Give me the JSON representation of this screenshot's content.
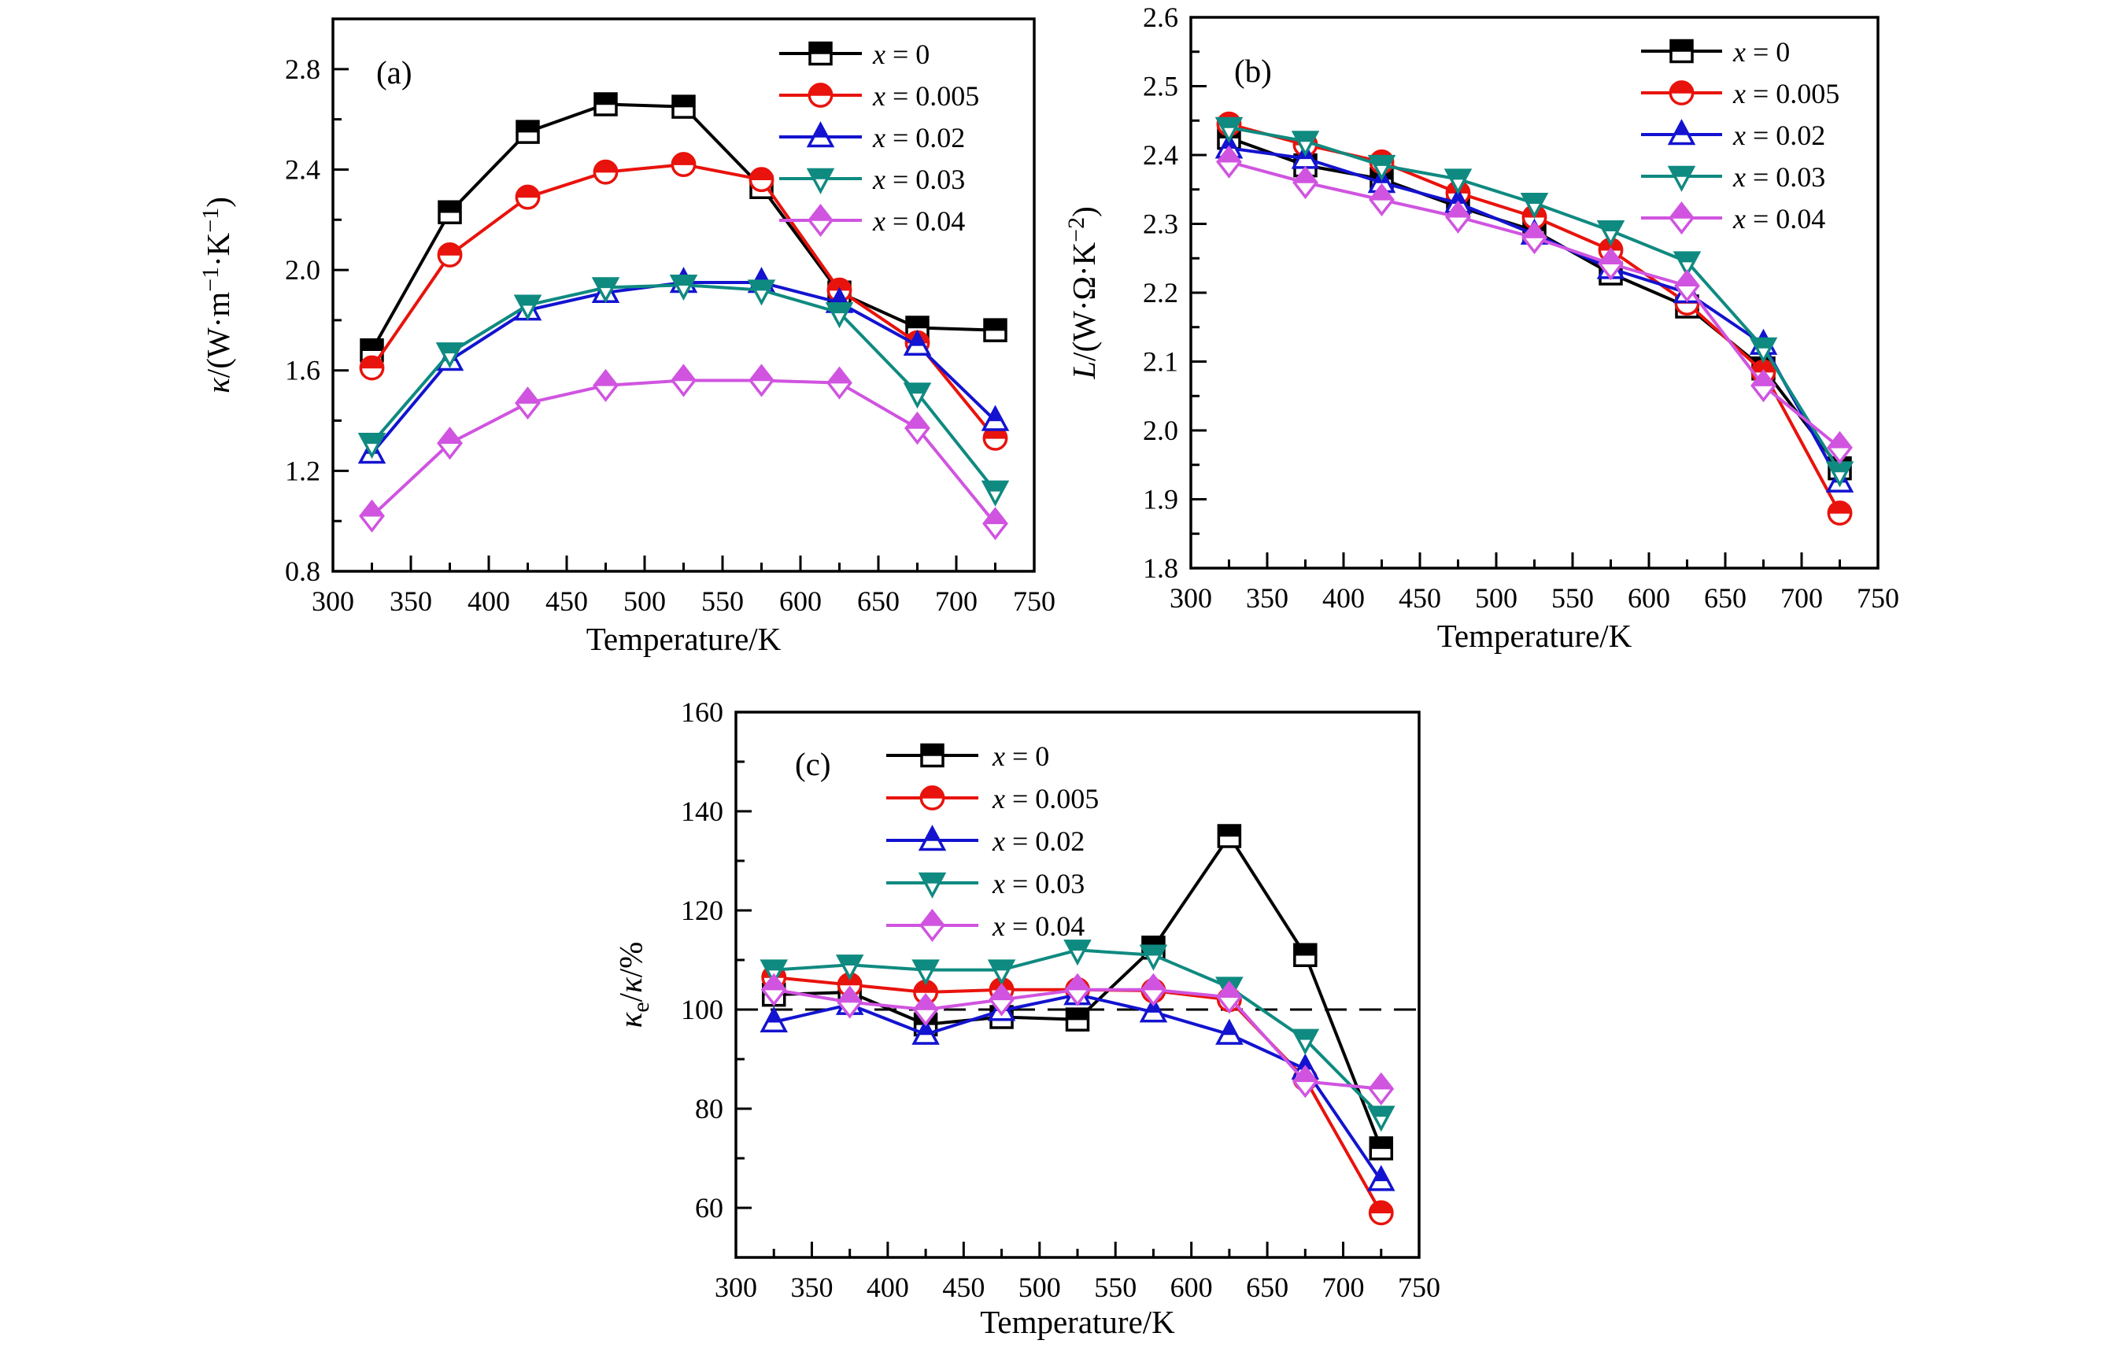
{
  "figure": {
    "background": "#ffffff",
    "x_points": [
      325,
      375,
      425,
      475,
      525,
      575,
      625,
      675,
      725
    ]
  },
  "chart_data": [
    {
      "id": "a",
      "type": "line",
      "panel_label": "(a)",
      "xlabel": "Temperature/K",
      "ylabel": "κ/(W·m⁻¹·K⁻¹)",
      "ylabel_parts": [
        {
          "t": "κ",
          "i": 1
        },
        {
          "t": "/(W·m"
        },
        {
          "t": "−1",
          "sup": 1
        },
        {
          "t": "·K"
        },
        {
          "t": "−1",
          "sup": 1
        },
        {
          "t": ")"
        }
      ],
      "xlim": [
        300,
        750
      ],
      "ylim": [
        0.8,
        3.0
      ],
      "xticks": [
        "300",
        "350",
        "400",
        "450",
        "500",
        "550",
        "600",
        "650",
        "700",
        "750"
      ],
      "yticks": [
        "0.8",
        "1.2",
        "1.6",
        "2.0",
        "2.4",
        "2.8"
      ],
      "x_minor_step": 25,
      "y_minor_step": 0.2,
      "grid": false,
      "legend_position": "top-right",
      "x": [
        325,
        375,
        425,
        475,
        525,
        575,
        625,
        675,
        725
      ],
      "series": [
        {
          "name": "x = 0",
          "marker": "square",
          "color": "#000000",
          "values": [
            1.68,
            2.23,
            2.55,
            2.66,
            2.65,
            2.33,
            1.91,
            1.77,
            1.76
          ]
        },
        {
          "name": "x = 0.005",
          "marker": "circle",
          "color": "#e8130c",
          "values": [
            1.61,
            2.06,
            2.29,
            2.39,
            2.42,
            2.36,
            1.92,
            1.71,
            1.33
          ]
        },
        {
          "name": "x = 0.02",
          "marker": "triangle-up",
          "color": "#1313d0",
          "values": [
            1.27,
            1.64,
            1.84,
            1.91,
            1.95,
            1.95,
            1.87,
            1.7,
            1.4
          ]
        },
        {
          "name": "x = 0.03",
          "marker": "triangle-down",
          "color": "#0f8a80",
          "values": [
            1.31,
            1.67,
            1.86,
            1.93,
            1.94,
            1.92,
            1.83,
            1.51,
            1.12
          ]
        },
        {
          "name": "x = 0.04",
          "marker": "diamond",
          "color": "#d054e0",
          "values": [
            1.02,
            1.31,
            1.47,
            1.54,
            1.56,
            1.56,
            1.55,
            1.37,
            0.99
          ]
        }
      ]
    },
    {
      "id": "b",
      "type": "line",
      "panel_label": "(b)",
      "xlabel": "Temperature/K",
      "ylabel": "L/(W·Ω·K⁻²)",
      "ylabel_parts": [
        {
          "t": "L",
          "i": 1
        },
        {
          "t": "/(W·Ω·K"
        },
        {
          "t": "−2",
          "sup": 1
        },
        {
          "t": ")"
        }
      ],
      "xlim": [
        300,
        750
      ],
      "ylim": [
        1.8,
        2.6
      ],
      "xticks": [
        "300",
        "350",
        "400",
        "450",
        "500",
        "550",
        "600",
        "650",
        "700",
        "750"
      ],
      "yticks": [
        "1.8",
        "1.9",
        "2.0",
        "2.1",
        "2.2",
        "2.3",
        "2.4",
        "2.5",
        "2.6"
      ],
      "x_minor_step": 25,
      "y_minor_step": 0.05,
      "grid": false,
      "legend_position": "top-right",
      "x": [
        325,
        375,
        425,
        475,
        525,
        575,
        625,
        675,
        725
      ],
      "series": [
        {
          "name": "x = 0",
          "marker": "square",
          "color": "#000000",
          "values": [
            2.425,
            2.385,
            2.365,
            2.325,
            2.29,
            2.228,
            2.18,
            2.09,
            1.945
          ]
        },
        {
          "name": "x = 0.005",
          "marker": "circle",
          "color": "#e8130c",
          "values": [
            2.445,
            2.415,
            2.39,
            2.345,
            2.31,
            2.262,
            2.185,
            2.085,
            1.88
          ]
        },
        {
          "name": "x = 0.02",
          "marker": "triangle-up",
          "color": "#1313d0",
          "values": [
            2.41,
            2.395,
            2.36,
            2.33,
            2.285,
            2.235,
            2.2,
            2.125,
            1.925
          ]
        },
        {
          "name": "x = 0.03",
          "marker": "triangle-down",
          "color": "#0f8a80",
          "values": [
            2.44,
            2.42,
            2.385,
            2.365,
            2.33,
            2.29,
            2.245,
            2.12,
            1.94
          ]
        },
        {
          "name": "x = 0.04",
          "marker": "diamond",
          "color": "#d054e0",
          "values": [
            2.39,
            2.36,
            2.335,
            2.31,
            2.28,
            2.242,
            2.21,
            2.065,
            1.975
          ]
        }
      ]
    },
    {
      "id": "c",
      "type": "line",
      "panel_label": "(c)",
      "xlabel": "Temperature/K",
      "ylabel": "κₑ/κ/%",
      "ylabel_parts": [
        {
          "t": "κ",
          "i": 1
        },
        {
          "t": "e",
          "sub": 1
        },
        {
          "t": "/"
        },
        {
          "t": "κ",
          "i": 1
        },
        {
          "t": "/%"
        }
      ],
      "xlim": [
        300,
        750
      ],
      "ylim": [
        50,
        160
      ],
      "xticks": [
        "300",
        "350",
        "400",
        "450",
        "500",
        "550",
        "600",
        "650",
        "700",
        "750"
      ],
      "yticks": [
        "60",
        "80",
        "100",
        "120",
        "140",
        "160"
      ],
      "x_minor_step": 25,
      "y_minor_step": 10,
      "grid": false,
      "hline": 100,
      "legend_position": "top-left-inset",
      "x": [
        325,
        375,
        425,
        475,
        525,
        575,
        625,
        675,
        725
      ],
      "series": [
        {
          "name": "x = 0",
          "marker": "square",
          "color": "#000000",
          "values": [
            103,
            103.5,
            97,
            98.5,
            98,
            112.5,
            135,
            111,
            72
          ]
        },
        {
          "name": "x = 0.005",
          "marker": "circle",
          "color": "#e8130c",
          "values": [
            106.5,
            105,
            103.5,
            104,
            104,
            103.8,
            102,
            86,
            59
          ]
        },
        {
          "name": "x = 0.02",
          "marker": "triangle-up",
          "color": "#1313d0",
          "values": [
            97.5,
            101,
            95,
            99.8,
            103,
            99.5,
            95,
            88,
            65.5
          ]
        },
        {
          "name": "x = 0.03",
          "marker": "triangle-down",
          "color": "#0f8a80",
          "values": [
            108,
            109,
            108,
            108,
            112,
            111,
            104.5,
            94,
            78.5
          ]
        },
        {
          "name": "x = 0.04",
          "marker": "diamond",
          "color": "#d054e0",
          "values": [
            104,
            101.5,
            100,
            102,
            104,
            104,
            102.5,
            85.5,
            84
          ]
        }
      ]
    }
  ]
}
